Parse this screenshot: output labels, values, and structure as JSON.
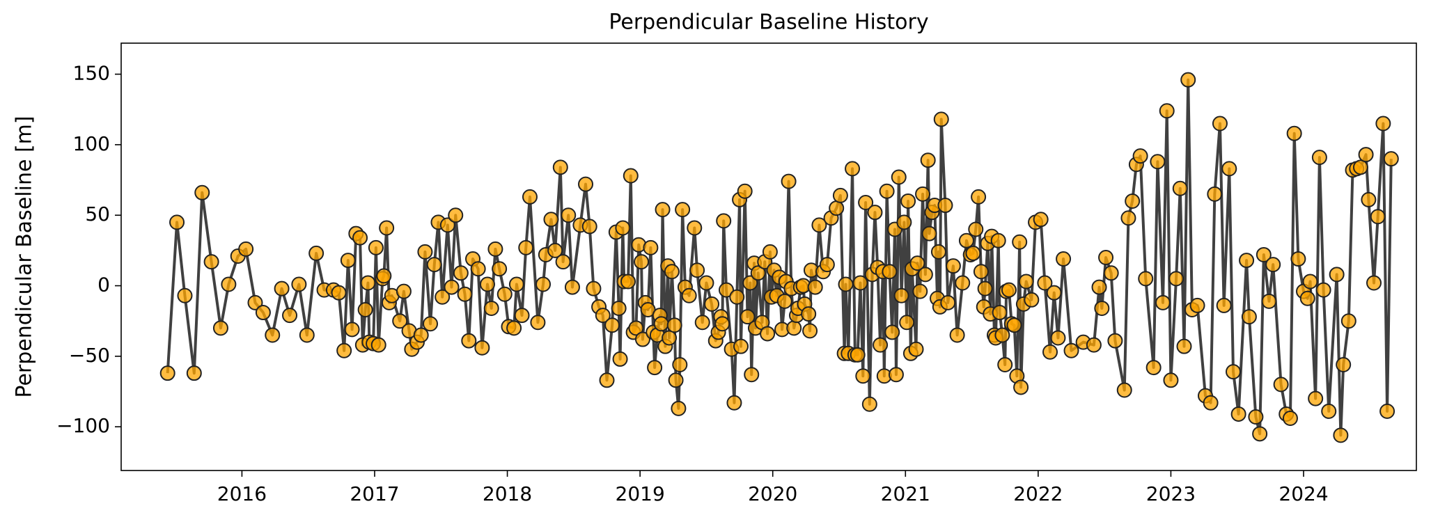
{
  "chart_data": {
    "type": "line",
    "title": "Perpendicular Baseline History",
    "y_label": "Perpendicular Baseline [m]",
    "color": "#ffa500",
    "line_color": "#404040",
    "markers": true,
    "xlim": [
      2015.09,
      2024.85
    ],
    "xticks": [
      2016,
      2017,
      2018,
      2019,
      2020,
      2021,
      2022,
      2023,
      2024
    ],
    "ylim": [
      -131,
      172
    ],
    "yticks": [
      {
        "value": -100,
        "label": "−100"
      },
      {
        "value": -50,
        "label": "−50"
      },
      0,
      50,
      100,
      150
    ],
    "x": [
      2015.44,
      2015.51,
      2015.57,
      2015.64,
      2015.7,
      2015.77,
      2015.84,
      2015.9,
      2015.97,
      2016.03,
      2016.1,
      2016.16,
      2016.23,
      2016.3,
      2016.36,
      2016.43,
      2016.49,
      2016.56,
      2016.62,
      2016.69,
      2016.73,
      2016.77,
      2016.8,
      2016.83,
      2016.86,
      2016.89,
      2016.91,
      2016.93,
      2016.95,
      2016.96,
      2016.99,
      2017.01,
      2017.03,
      2017.06,
      2017.07,
      2017.09,
      2017.11,
      2017.13,
      2017.19,
      2017.22,
      2017.26,
      2017.28,
      2017.32,
      2017.35,
      2017.38,
      2017.42,
      2017.45,
      2017.48,
      2017.51,
      2017.55,
      2017.58,
      2017.61,
      2017.65,
      2017.68,
      2017.71,
      2017.74,
      2017.78,
      2017.81,
      2017.85,
      2017.88,
      2017.91,
      2017.94,
      2017.98,
      2018.01,
      2018.05,
      2018.07,
      2018.11,
      2018.14,
      2018.17,
      2018.23,
      2018.27,
      2018.29,
      2018.33,
      2018.36,
      2018.4,
      2018.42,
      2018.46,
      2018.49,
      2018.55,
      2018.59,
      2018.62,
      2018.65,
      2018.69,
      2018.72,
      2018.75,
      2018.79,
      2018.82,
      2018.84,
      2018.85,
      2018.87,
      2018.88,
      2018.91,
      2018.93,
      2018.95,
      2018.97,
      2018.99,
      2019.01,
      2019.02,
      2019.04,
      2019.06,
      2019.08,
      2019.1,
      2019.11,
      2019.13,
      2019.15,
      2019.16,
      2019.17,
      2019.19,
      2019.21,
      2019.22,
      2019.24,
      2019.26,
      2019.27,
      2019.29,
      2019.3,
      2019.32,
      2019.34,
      2019.37,
      2019.41,
      2019.43,
      2019.47,
      2019.5,
      2019.54,
      2019.57,
      2019.59,
      2019.61,
      2019.62,
      2019.63,
      2019.65,
      2019.69,
      2019.71,
      2019.73,
      2019.75,
      2019.76,
      2019.79,
      2019.81,
      2019.83,
      2019.84,
      2019.86,
      2019.87,
      2019.89,
      2019.92,
      2019.94,
      2019.96,
      2019.98,
      2019.99,
      2020.01,
      2020.03,
      2020.05,
      2020.07,
      2020.09,
      2020.1,
      2020.12,
      2020.14,
      2020.16,
      2020.18,
      2020.19,
      2020.21,
      2020.23,
      2020.24,
      2020.27,
      2020.28,
      2020.29,
      2020.32,
      2020.35,
      2020.38,
      2020.41,
      2020.44,
      2020.48,
      2020.51,
      2020.54,
      2020.55,
      2020.57,
      2020.6,
      2020.62,
      2020.64,
      2020.66,
      2020.68,
      2020.7,
      2020.73,
      2020.75,
      2020.77,
      2020.79,
      2020.81,
      2020.83,
      2020.84,
      2020.86,
      2020.88,
      2020.9,
      2020.92,
      2020.93,
      2020.95,
      2020.97,
      2020.99,
      2021.01,
      2021.02,
      2021.04,
      2021.05,
      2021.08,
      2021.09,
      2021.11,
      2021.13,
      2021.15,
      2021.17,
      2021.18,
      2021.2,
      2021.22,
      2021.24,
      2021.25,
      2021.26,
      2021.27,
      2021.3,
      2021.32,
      2021.36,
      2021.39,
      2021.43,
      2021.46,
      2021.49,
      2021.51,
      2021.53,
      2021.55,
      2021.57,
      2021.59,
      2021.6,
      2021.62,
      2021.64,
      2021.65,
      2021.67,
      2021.68,
      2021.7,
      2021.71,
      2021.73,
      2021.75,
      2021.76,
      2021.78,
      2021.8,
      2021.82,
      2021.84,
      2021.86,
      2021.87,
      2021.89,
      2021.91,
      2021.95,
      2021.98,
      2022.02,
      2022.05,
      2022.09,
      2022.12,
      2022.15,
      2022.19,
      2022.25,
      2022.34,
      2022.42,
      2022.46,
      2022.48,
      2022.51,
      2022.55,
      2022.58,
      2022.65,
      2022.68,
      2022.71,
      2022.74,
      2022.77,
      2022.81,
      2022.87,
      2022.9,
      2022.94,
      2022.97,
      2023.0,
      2023.04,
      2023.07,
      2023.1,
      2023.13,
      2023.16,
      2023.2,
      2023.26,
      2023.3,
      2023.33,
      2023.37,
      2023.4,
      2023.44,
      2023.47,
      2023.51,
      2023.57,
      2023.59,
      2023.64,
      2023.67,
      2023.7,
      2023.74,
      2023.77,
      2023.83,
      2023.87,
      2023.9,
      2023.93,
      2023.96,
      2024.0,
      2024.03,
      2024.05,
      2024.09,
      2024.12,
      2024.15,
      2024.19,
      2024.25,
      2024.28,
      2024.3,
      2024.34,
      2024.37,
      2024.4,
      2024.43,
      2024.47,
      2024.49,
      2024.53,
      2024.56,
      2024.6,
      2024.63,
      2024.66
    ],
    "values": [
      -62,
      45,
      -7,
      -62,
      66,
      17,
      -30,
      1,
      21,
      26,
      -12,
      -19,
      -35,
      -2,
      -21,
      1,
      -35,
      23,
      -3,
      -3,
      -5,
      -46,
      18,
      -31,
      37,
      34,
      -42,
      -17,
      2,
      -40,
      -41,
      27,
      -42,
      5,
      7,
      41,
      -12,
      -7,
      -25,
      -4,
      -32,
      -45,
      -40,
      -35,
      24,
      -27,
      15,
      45,
      -8,
      43,
      -1,
      50,
      9,
      -6,
      -39,
      19,
      12,
      -44,
      1,
      -16,
      26,
      12,
      -6,
      -29,
      -30,
      1,
      -21,
      27,
      63,
      -26,
      1,
      22,
      47,
      25,
      84,
      17,
      50,
      -1,
      43,
      72,
      42,
      -2,
      -15,
      -21,
      -67,
      -28,
      38,
      -16,
      -52,
      41,
      3,
      3,
      78,
      -33,
      -30,
      29,
      17,
      -38,
      -12,
      -17,
      27,
      -33,
      -58,
      -35,
      -21,
      -27,
      54,
      -43,
      14,
      -37,
      10,
      -28,
      -67,
      -87,
      -56,
      54,
      -1,
      -7,
      41,
      11,
      -26,
      2,
      -13,
      -39,
      -33,
      -22,
      -27,
      46,
      -3,
      -45,
      -83,
      -8,
      61,
      -43,
      67,
      -22,
      2,
      -63,
      16,
      -30,
      9,
      -26,
      17,
      -34,
      24,
      -8,
      11,
      -7,
      6,
      -31,
      -11,
      3,
      74,
      -2,
      -30,
      -21,
      -16,
      -1,
      0,
      -13,
      -20,
      -32,
      11,
      -1,
      43,
      10,
      15,
      48,
      55,
      64,
      -48,
      1,
      -48,
      83,
      -49,
      -49,
      2,
      -64,
      59,
      -84,
      8,
      52,
      13,
      -42,
      10,
      -64,
      67,
      10,
      -33,
      40,
      -63,
      77,
      -7,
      45,
      -26,
      60,
      -48,
      12,
      -45,
      16,
      -4,
      65,
      8,
      89,
      37,
      52,
      57,
      -9,
      24,
      -15,
      118,
      57,
      -12,
      14,
      -35,
      2,
      32,
      22,
      23,
      40,
      63,
      10,
      -15,
      -2,
      30,
      -20,
      35,
      -35,
      -37,
      32,
      -19,
      -35,
      -56,
      -4,
      -3,
      -27,
      -28,
      -64,
      31,
      -72,
      -13,
      3,
      -10,
      45,
      47,
      2,
      -47,
      -5,
      -37,
      19,
      -46,
      -40,
      -42,
      -1,
      -16,
      20,
      9,
      -39,
      -74,
      48,
      60,
      86,
      92,
      5,
      -58,
      88,
      -12,
      124,
      -67,
      5,
      69,
      -43,
      146,
      -17,
      -14,
      -78,
      -83,
      65,
      115,
      -14,
      83,
      -61,
      -91,
      18,
      -22,
      -93,
      -105,
      22,
      -11,
      15,
      -70,
      -91,
      -94,
      108,
      19,
      -4,
      -9,
      3,
      -80,
      91,
      -3,
      -89,
      8,
      -106,
      -56,
      -25,
      82,
      83,
      84,
      93,
      61,
      2,
      49,
      115,
      -89,
      90
    ]
  }
}
